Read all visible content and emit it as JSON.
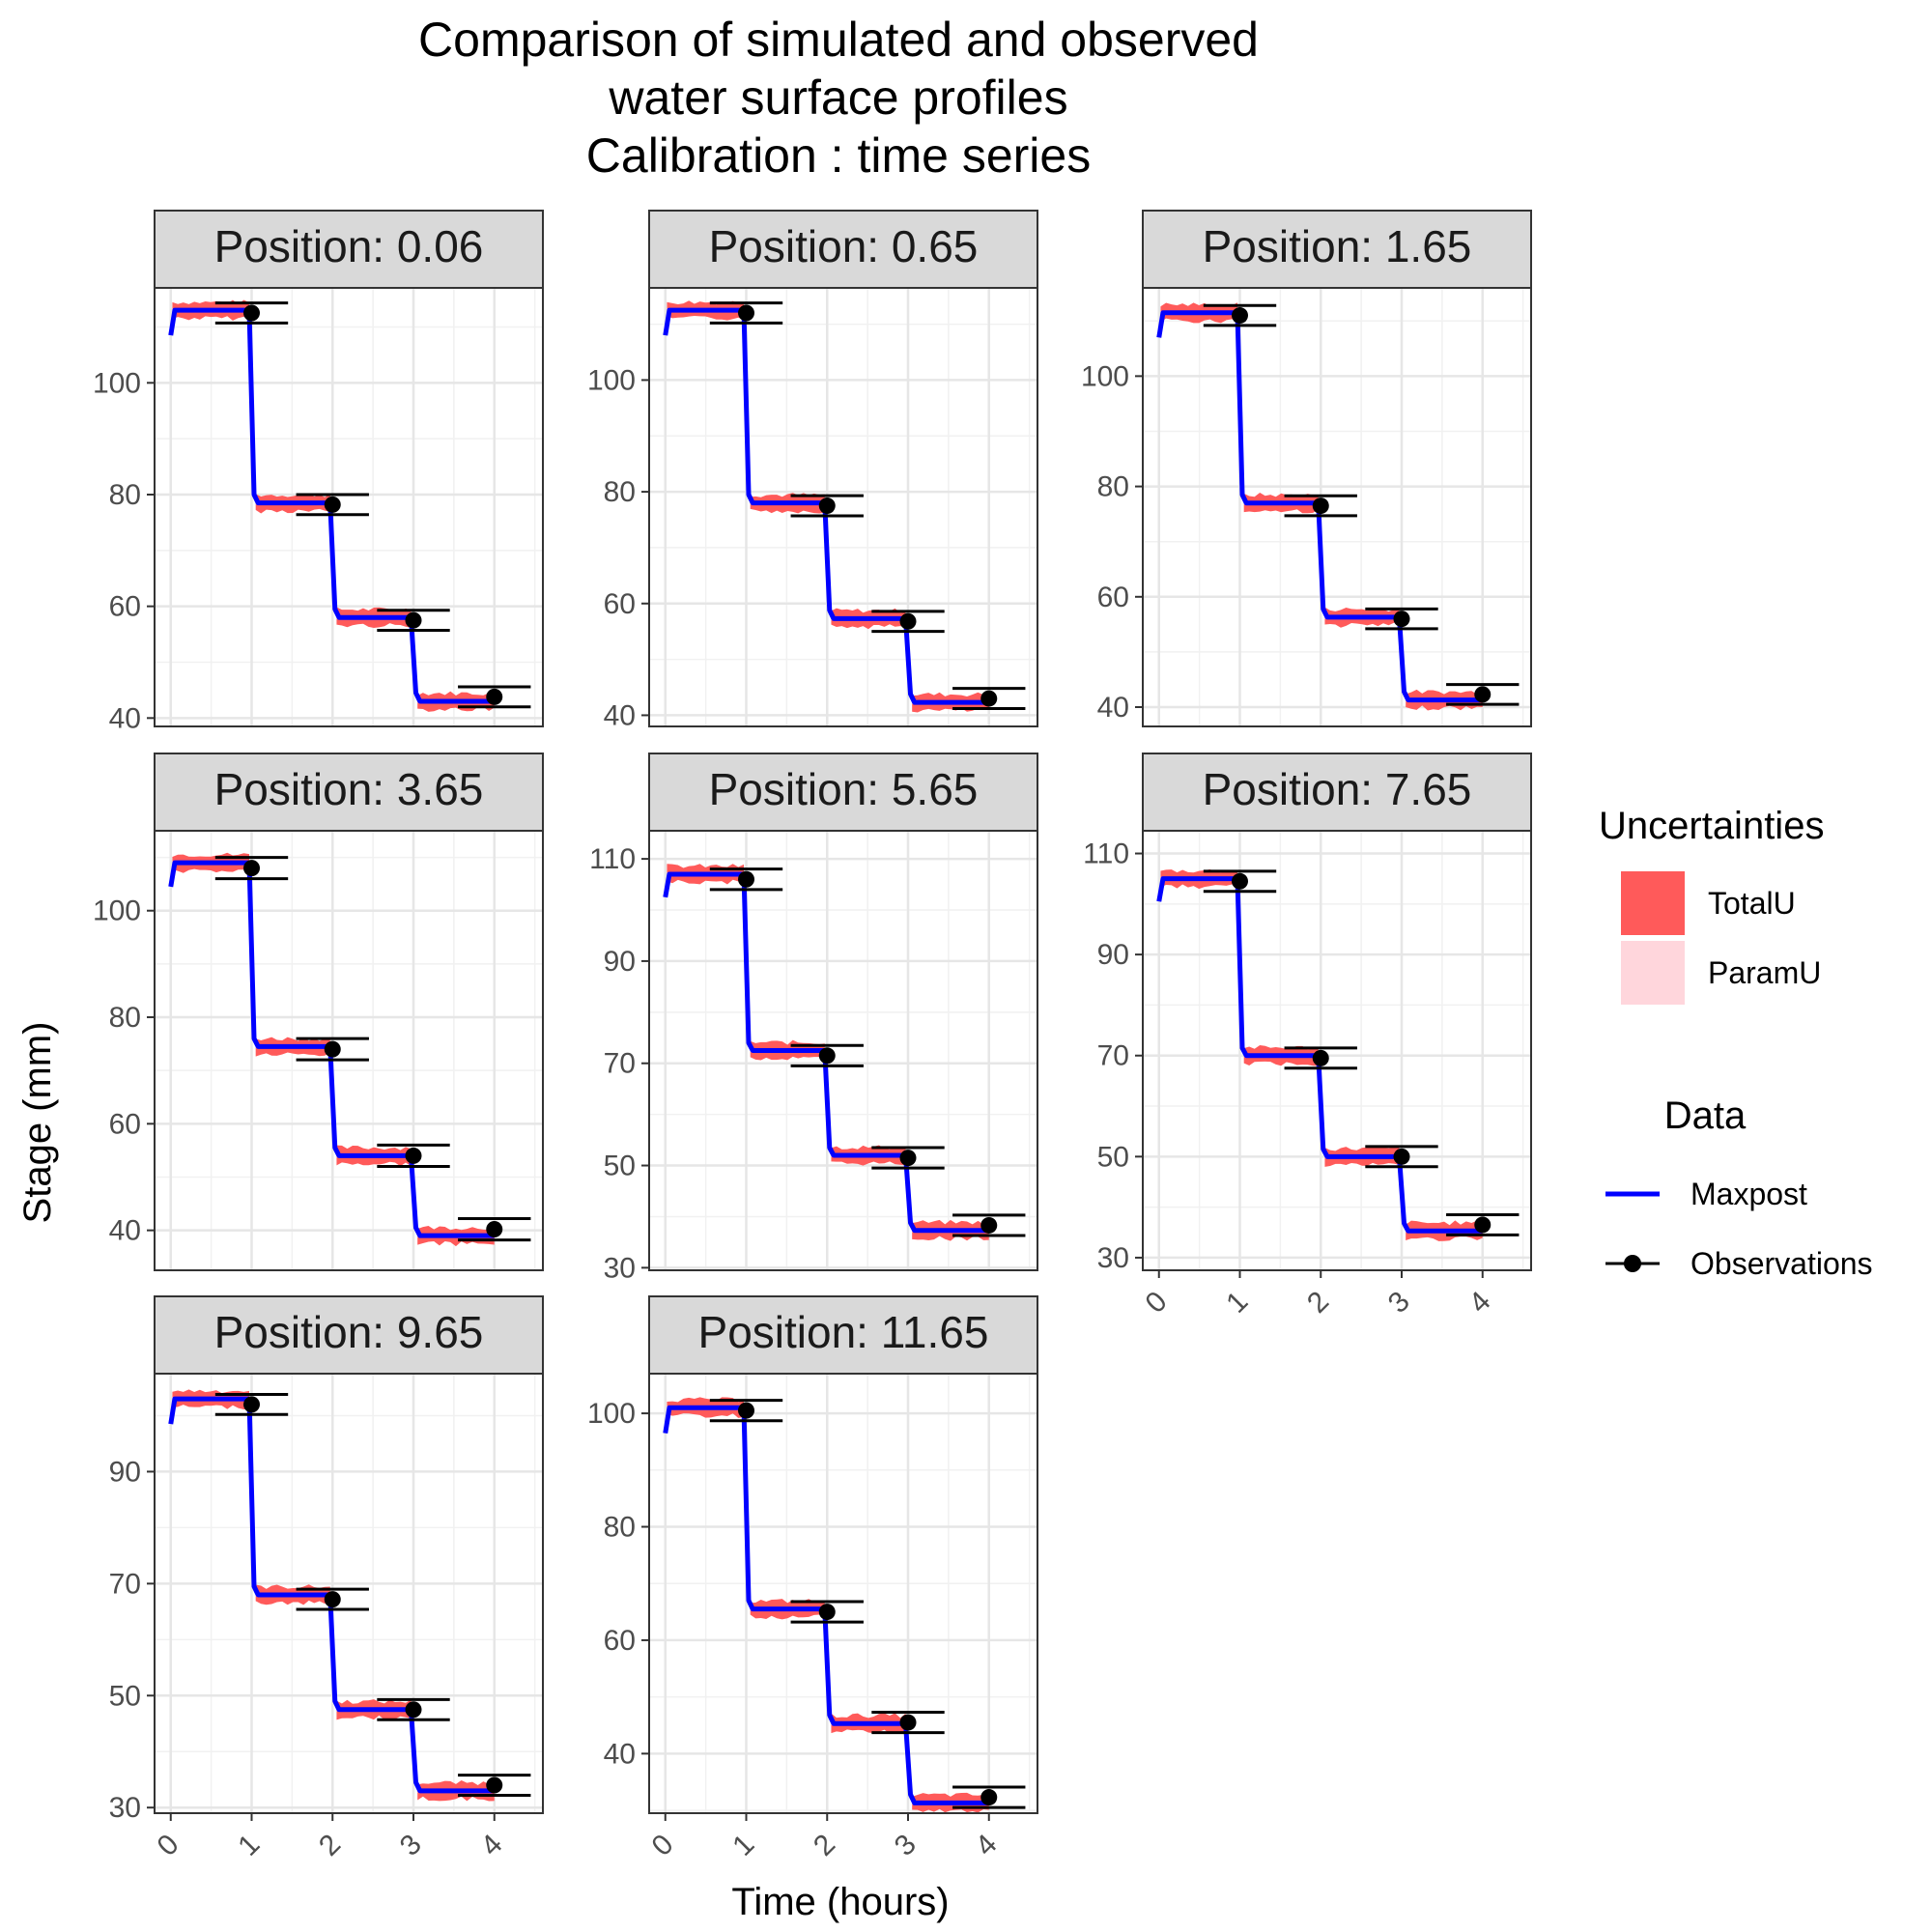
{
  "chart_data": {
    "type": "line",
    "title": [
      "Comparison of simulated and observed",
      "water surface profiles",
      "Calibration : time series"
    ],
    "xlabel": "Time (hours)",
    "ylabel": "Stage (mm)",
    "xlim": [
      -0.2,
      4.6
    ],
    "x_ticks": [
      0,
      1,
      2,
      3,
      4
    ],
    "grid": true,
    "strip_prefix": "Position:",
    "obs_x_error": 0.45,
    "colors": {
      "maxpost": "#0000ff",
      "totalU": "#ff5a5a",
      "paramU": "#ffd6dc",
      "observations": "#000000",
      "strip_bg": "#d9d9d9"
    },
    "legend": {
      "position": "right",
      "uncertainties_title": "Uncertainties",
      "uncertainties": [
        "TotalU",
        "ParamU"
      ],
      "data_title": "Data",
      "data": [
        "Maxpost",
        "Observations"
      ]
    },
    "panels": [
      {
        "position": "0.06",
        "ylim": [
          38.5,
          117
        ],
        "y_ticks": [
          40,
          60,
          80,
          100
        ],
        "levels": [
          113,
          78.5,
          58,
          43
        ],
        "obs": [
          112.5,
          78.2,
          57.5,
          43.8
        ],
        "obs_err": 1.8
      },
      {
        "position": "0.65",
        "ylim": [
          38,
          116.5
        ],
        "y_ticks": [
          40,
          60,
          80,
          100
        ],
        "levels": [
          112.5,
          78,
          57.3,
          42.3
        ],
        "obs": [
          112,
          77.5,
          56.8,
          43
        ],
        "obs_err": 1.8
      },
      {
        "position": "1.65",
        "ylim": [
          36.5,
          116
        ],
        "y_ticks": [
          40,
          60,
          80,
          100
        ],
        "levels": [
          111.5,
          77,
          56.3,
          41.3
        ],
        "obs": [
          111,
          76.5,
          56,
          42.3
        ],
        "obs_err": 1.8
      },
      {
        "position": "3.65",
        "ylim": [
          32.5,
          115
        ],
        "y_ticks": [
          40,
          60,
          80,
          100
        ],
        "levels": [
          109,
          74.5,
          54,
          39
        ],
        "obs": [
          108,
          74,
          54,
          40.2
        ],
        "obs_err": 2
      },
      {
        "position": "5.65",
        "ylim": [
          29.5,
          115.5
        ],
        "y_ticks": [
          30,
          50,
          70,
          90,
          110
        ],
        "levels": [
          107,
          72.5,
          52,
          37.3
        ],
        "obs": [
          106,
          71.5,
          51.5,
          38.3
        ],
        "obs_err": 2
      },
      {
        "position": "7.65",
        "ylim": [
          27.5,
          114.5
        ],
        "y_ticks": [
          30,
          50,
          70,
          90,
          110
        ],
        "levels": [
          105,
          70,
          50,
          35.3
        ],
        "obs": [
          104.5,
          69.5,
          50,
          36.5
        ],
        "obs_err": 2
      },
      {
        "position": "9.65",
        "ylim": [
          29,
          107.5
        ],
        "y_ticks": [
          30,
          50,
          70,
          90
        ],
        "levels": [
          103,
          68,
          47.5,
          33
        ],
        "obs": [
          102,
          67.2,
          47.5,
          34
        ],
        "obs_err": 1.8
      },
      {
        "position": "11.65",
        "ylim": [
          29.5,
          107
        ],
        "y_ticks": [
          40,
          60,
          80,
          100
        ],
        "levels": [
          101,
          65.5,
          45.3,
          31.3
        ],
        "obs": [
          100.5,
          65,
          45.5,
          32.3
        ],
        "obs_err": 1.8
      }
    ]
  }
}
